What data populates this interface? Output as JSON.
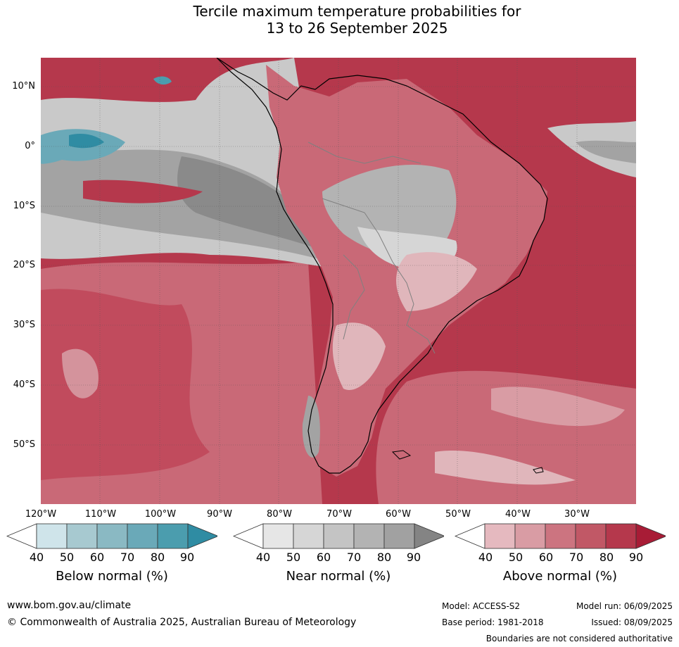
{
  "title": {
    "line1": "Tercile maximum temperature probabilities for",
    "line2": "13 to 26 September 2025"
  },
  "map": {
    "latitude_labels": [
      "10°N",
      "0°",
      "10°S",
      "20°S",
      "30°S",
      "40°S",
      "50°S"
    ],
    "longitude_labels": [
      "120°W",
      "110°W",
      "100°W",
      "90°W",
      "80°W",
      "70°W",
      "60°W",
      "50°W",
      "40°W",
      "30°W"
    ],
    "dominant_category": "Above normal",
    "colors": {
      "ocean_above_high": "#b3243d",
      "above_80": "#c14b5d",
      "above_70": "#c96977",
      "above_60": "#d4939c",
      "above_50": "#e0b6bb",
      "near_normal_dark": "#8a8a8a",
      "near_normal_mid": "#a3a3a3",
      "near_normal_light": "#c9c9c9",
      "below_normal": "#3f9ab0",
      "coastline": "#000000",
      "borders": "#808080"
    }
  },
  "legends": [
    {
      "title": "Below normal (%)",
      "ticks": [
        "40",
        "50",
        "60",
        "70",
        "80",
        "90"
      ],
      "colors": [
        "#ffffff",
        "#cfe4ea",
        "#a7c9d0",
        "#8ab9c3",
        "#6aa9b8",
        "#4b9dae",
        "#2f8ca3"
      ]
    },
    {
      "title": "Near normal (%)",
      "ticks": [
        "40",
        "50",
        "60",
        "70",
        "80",
        "90"
      ],
      "colors": [
        "#ffffff",
        "#e6e6e6",
        "#d6d6d6",
        "#c4c4c4",
        "#b3b3b3",
        "#a1a1a1",
        "#848484"
      ]
    },
    {
      "title": "Above normal (%)",
      "ticks": [
        "40",
        "50",
        "60",
        "70",
        "80",
        "90"
      ],
      "colors": [
        "#ffffff",
        "#e5b9bf",
        "#d99ca4",
        "#cc7480",
        "#c15866",
        "#b5384c",
        "#a81c36"
      ]
    }
  ],
  "footer": {
    "website": "www.bom.gov.au/climate",
    "copyright": "© Commonwealth of Australia 2025, Australian Bureau of Meteorology",
    "model": "Model: ACCESS-S2",
    "model_run": "Model run: 06/09/2025",
    "base_period": "Base period: 1981-2018",
    "issued": "Issued: 08/09/2025",
    "disclaimer": "Boundaries are not considered authoritative"
  }
}
